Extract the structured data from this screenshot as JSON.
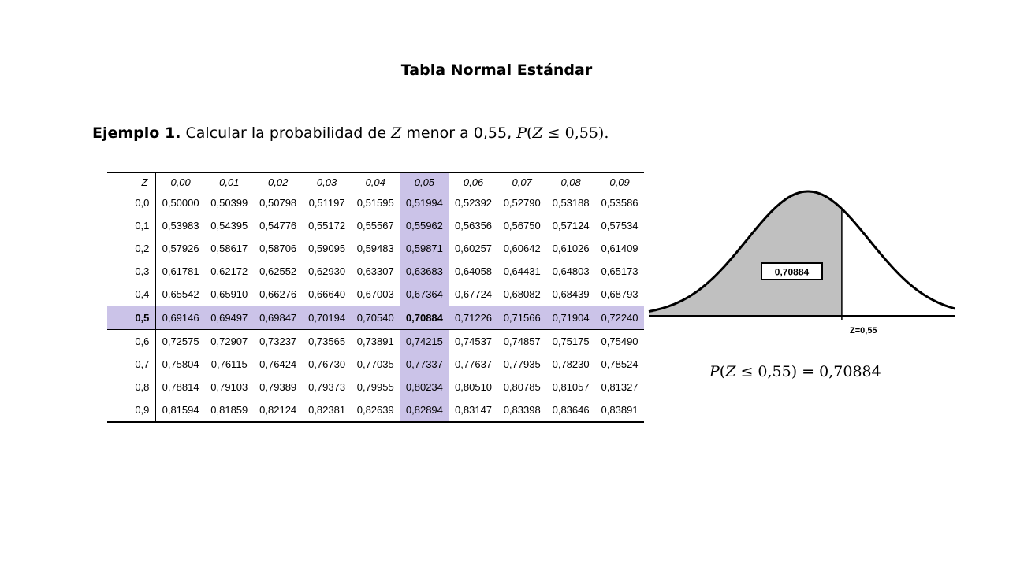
{
  "title": "Tabla Normal Estándar",
  "example": {
    "label": "Ejemplo 1",
    "text": "Calcular la probabilidad de",
    "var": "Z",
    "text2": "menor a 0,55,",
    "math_prefix": "P",
    "math_var": "Z",
    "math_rest": "≤ 0,55)."
  },
  "table": {
    "corner": "Z",
    "columns": [
      "0,00",
      "0,01",
      "0,02",
      "0,03",
      "0,04",
      "0,05",
      "0,06",
      "0,07",
      "0,08",
      "0,09"
    ],
    "highlight_col": 5,
    "highlight_row": 5,
    "rows": [
      {
        "z": "0,0",
        "values": [
          "0,50000",
          "0,50399",
          "0,50798",
          "0,51197",
          "0,51595",
          "0,51994",
          "0,52392",
          "0,52790",
          "0,53188",
          "0,53586"
        ]
      },
      {
        "z": "0,1",
        "values": [
          "0,53983",
          "0,54395",
          "0,54776",
          "0,55172",
          "0,55567",
          "0,55962",
          "0,56356",
          "0,56750",
          "0,57124",
          "0,57534"
        ]
      },
      {
        "z": "0,2",
        "values": [
          "0,57926",
          "0,58617",
          "0,58706",
          "0,59095",
          "0,59483",
          "0,59871",
          "0,60257",
          "0,60642",
          "0,61026",
          "0,61409"
        ]
      },
      {
        "z": "0,3",
        "values": [
          "0,61781",
          "0,62172",
          "0,62552",
          "0,62930",
          "0,63307",
          "0,63683",
          "0,64058",
          "0,64431",
          "0,64803",
          "0,65173"
        ]
      },
      {
        "z": "0,4",
        "values": [
          "0,65542",
          "0,65910",
          "0,66276",
          "0,66640",
          "0,67003",
          "0,67364",
          "0,67724",
          "0,68082",
          "0,68439",
          "0,68793"
        ]
      },
      {
        "z": "0,5",
        "values": [
          "0,69146",
          "0,69497",
          "0,69847",
          "0,70194",
          "0,70540",
          "0,70884",
          "0,71226",
          "0,71566",
          "0,71904",
          "0,72240"
        ]
      },
      {
        "z": "0,6",
        "values": [
          "0,72575",
          "0,72907",
          "0,73237",
          "0,73565",
          "0,73891",
          "0,74215",
          "0,74537",
          "0,74857",
          "0,75175",
          "0,75490"
        ]
      },
      {
        "z": "0,7",
        "values": [
          "0,75804",
          "0,76115",
          "0,76424",
          "0,76730",
          "0,77035",
          "0,77337",
          "0,77637",
          "0,77935",
          "0,78230",
          "0,78524"
        ]
      },
      {
        "z": "0,8",
        "values": [
          "0,78814",
          "0,79103",
          "0,79389",
          "0,79373",
          "0,79955",
          "0,80234",
          "0,80510",
          "0,80785",
          "0,81057",
          "0,81327"
        ]
      },
      {
        "z": "0,9",
        "values": [
          "0,81594",
          "0,81859",
          "0,82124",
          "0,82381",
          "0,82639",
          "0,82894",
          "0,83147",
          "0,83398",
          "0,83646",
          "0,83891"
        ]
      }
    ]
  },
  "curve": {
    "area_label": "0,70884",
    "z_label": "Z=0,55",
    "z_value": 0.55,
    "fill_color": "#c0c0c0"
  },
  "result": {
    "lhs_p": "P",
    "lhs_var": "Z",
    "rest": "≤ 0,55) = 0,70884"
  },
  "colors": {
    "highlight": "#cbc3e8"
  }
}
